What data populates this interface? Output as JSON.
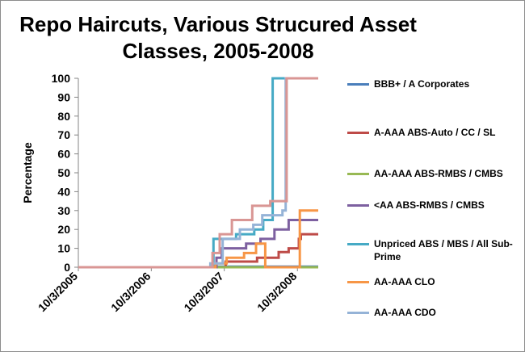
{
  "chart_data": {
    "type": "line",
    "title": "Repo Haircuts, Various Strucured Asset Classes, 2005-2008",
    "ylabel": "Percentage",
    "xlabel": "",
    "ylim": [
      0,
      100
    ],
    "yticks": [
      "0",
      "10",
      "20",
      "30",
      "40",
      "50",
      "60",
      "70",
      "80",
      "90",
      "100"
    ],
    "xlim": [
      "2005-10-03",
      "2009-01-15"
    ],
    "xticks": [
      {
        "date": "2005-10-03",
        "label": "10/3/2005"
      },
      {
        "date": "2006-10-03",
        "label": "10/3/2006"
      },
      {
        "date": "2007-10-03",
        "label": "10/3/2007"
      },
      {
        "date": "2008-10-03",
        "label": "10/3/2008"
      }
    ],
    "grid": false,
    "legend_position": "right",
    "series": [
      {
        "name": "BBB+ / A Corporates",
        "color": "#4a7ebb",
        "points": [
          [
            "2005-10-03",
            0
          ],
          [
            "2007-08-10",
            0
          ],
          [
            "2007-08-10",
            0.3
          ],
          [
            "2009-01-15",
            0.3
          ]
        ]
      },
      {
        "name": "A-AAA ABS-Auto / CC / SL",
        "color": "#be4b48",
        "points": [
          [
            "2005-10-03",
            0
          ],
          [
            "2007-10-10",
            0
          ],
          [
            "2007-10-10",
            3
          ],
          [
            "2008-03-15",
            3
          ],
          [
            "2008-03-15",
            5
          ],
          [
            "2008-07-01",
            5
          ],
          [
            "2008-07-01",
            8
          ],
          [
            "2008-08-20",
            8
          ],
          [
            "2008-08-20",
            10
          ],
          [
            "2008-10-10",
            10
          ],
          [
            "2008-10-10",
            15
          ],
          [
            "2008-10-20",
            15
          ],
          [
            "2008-10-20",
            17.5
          ],
          [
            "2009-01-15",
            17.5
          ]
        ]
      },
      {
        "name": "AA-AAA ABS-RMBS / CMBS",
        "color": "#98b954",
        "points": [
          [
            "2005-10-03",
            0
          ],
          [
            "2009-01-15",
            0
          ]
        ]
      },
      {
        "name": "<AA  ABS-RMBS / CMBS",
        "color": "#7d60a0",
        "points": [
          [
            "2005-10-03",
            0
          ],
          [
            "2007-08-25",
            0
          ],
          [
            "2007-08-25",
            5
          ],
          [
            "2007-09-20",
            5
          ],
          [
            "2007-09-20",
            10
          ],
          [
            "2008-01-20",
            10
          ],
          [
            "2008-01-20",
            12.5
          ],
          [
            "2008-04-01",
            12.5
          ],
          [
            "2008-04-01",
            15
          ],
          [
            "2008-06-10",
            15
          ],
          [
            "2008-06-10",
            20
          ],
          [
            "2008-08-20",
            20
          ],
          [
            "2008-08-20",
            25
          ],
          [
            "2009-01-15",
            25
          ]
        ]
      },
      {
        "name": "Unpriced ABS / MBS / All Sub-Prime",
        "color": "#46aac5",
        "points": [
          [
            "2005-10-03",
            0
          ],
          [
            "2007-08-10",
            0
          ],
          [
            "2007-08-10",
            15
          ],
          [
            "2007-12-01",
            15
          ],
          [
            "2007-12-01",
            17.5
          ],
          [
            "2008-03-01",
            17.5
          ],
          [
            "2008-03-01",
            20
          ],
          [
            "2008-04-15",
            20
          ],
          [
            "2008-04-15",
            25
          ],
          [
            "2008-06-01",
            25
          ],
          [
            "2008-06-01",
            100
          ],
          [
            "2008-08-01",
            100
          ],
          [
            "2008-08-01",
            100
          ],
          [
            "2009-01-15",
            100
          ]
        ]
      },
      {
        "name": "AA-AAA CLO",
        "color": "#f79646",
        "points": [
          [
            "2005-10-03",
            0
          ],
          [
            "2007-08-20",
            0
          ],
          [
            "2007-08-20",
            2
          ],
          [
            "2007-10-15",
            2
          ],
          [
            "2007-10-15",
            5
          ],
          [
            "2008-01-10",
            5
          ],
          [
            "2008-01-10",
            7.5
          ],
          [
            "2008-03-10",
            7.5
          ],
          [
            "2008-03-10",
            12.5
          ],
          [
            "2008-04-25",
            12.5
          ],
          [
            "2008-04-25",
            0
          ],
          [
            "2008-10-15",
            0
          ],
          [
            "2008-10-15",
            30
          ],
          [
            "2009-01-15",
            30
          ]
        ]
      },
      {
        "name": "AA-AAA CDO",
        "color": "#95b3d7",
        "points": [
          [
            "2005-10-03",
            0
          ],
          [
            "2007-07-25",
            0
          ],
          [
            "2007-07-25",
            2
          ],
          [
            "2007-09-25",
            2
          ],
          [
            "2007-09-25",
            15
          ],
          [
            "2007-12-20",
            15
          ],
          [
            "2007-12-20",
            20
          ],
          [
            "2008-02-25",
            20
          ],
          [
            "2008-02-25",
            22.5
          ],
          [
            "2008-04-10",
            22.5
          ],
          [
            "2008-04-10",
            27.5
          ],
          [
            "2008-07-20",
            27.5
          ],
          [
            "2008-07-20",
            30
          ],
          [
            "2008-08-05",
            30
          ],
          [
            "2008-08-05",
            100
          ],
          [
            "2009-01-15",
            100
          ]
        ]
      },
      {
        "name": "",
        "color": "#d99694",
        "points": [
          [
            "2005-10-03",
            0
          ],
          [
            "2007-08-05",
            0
          ],
          [
            "2007-08-05",
            7.5
          ],
          [
            "2007-09-10",
            7.5
          ],
          [
            "2007-09-10",
            17.5
          ],
          [
            "2007-11-10",
            17.5
          ],
          [
            "2007-11-10",
            25
          ],
          [
            "2008-02-20",
            25
          ],
          [
            "2008-02-20",
            32.5
          ],
          [
            "2008-05-20",
            32.5
          ],
          [
            "2008-05-20",
            35
          ],
          [
            "2008-08-10",
            35
          ],
          [
            "2008-08-10",
            100
          ],
          [
            "2009-01-15",
            100
          ]
        ]
      }
    ],
    "legend": [
      {
        "label": "BBB+ / A Corporates",
        "color": "#4a7ebb"
      },
      {
        "label": "A-AAA ABS-Auto / CC / SL",
        "color": "#be4b48"
      },
      {
        "label": "AA-AAA ABS-RMBS / CMBS",
        "color": "#98b954"
      },
      {
        "label": "<AA  ABS-RMBS / CMBS",
        "color": "#7d60a0"
      },
      {
        "label": "Unpriced ABS / MBS / All Sub-Prime",
        "color": "#46aac5"
      },
      {
        "label": "AA-AAA CLO",
        "color": "#f79646"
      },
      {
        "label": "AA-AAA CDO",
        "color": "#95b3d7"
      }
    ]
  }
}
